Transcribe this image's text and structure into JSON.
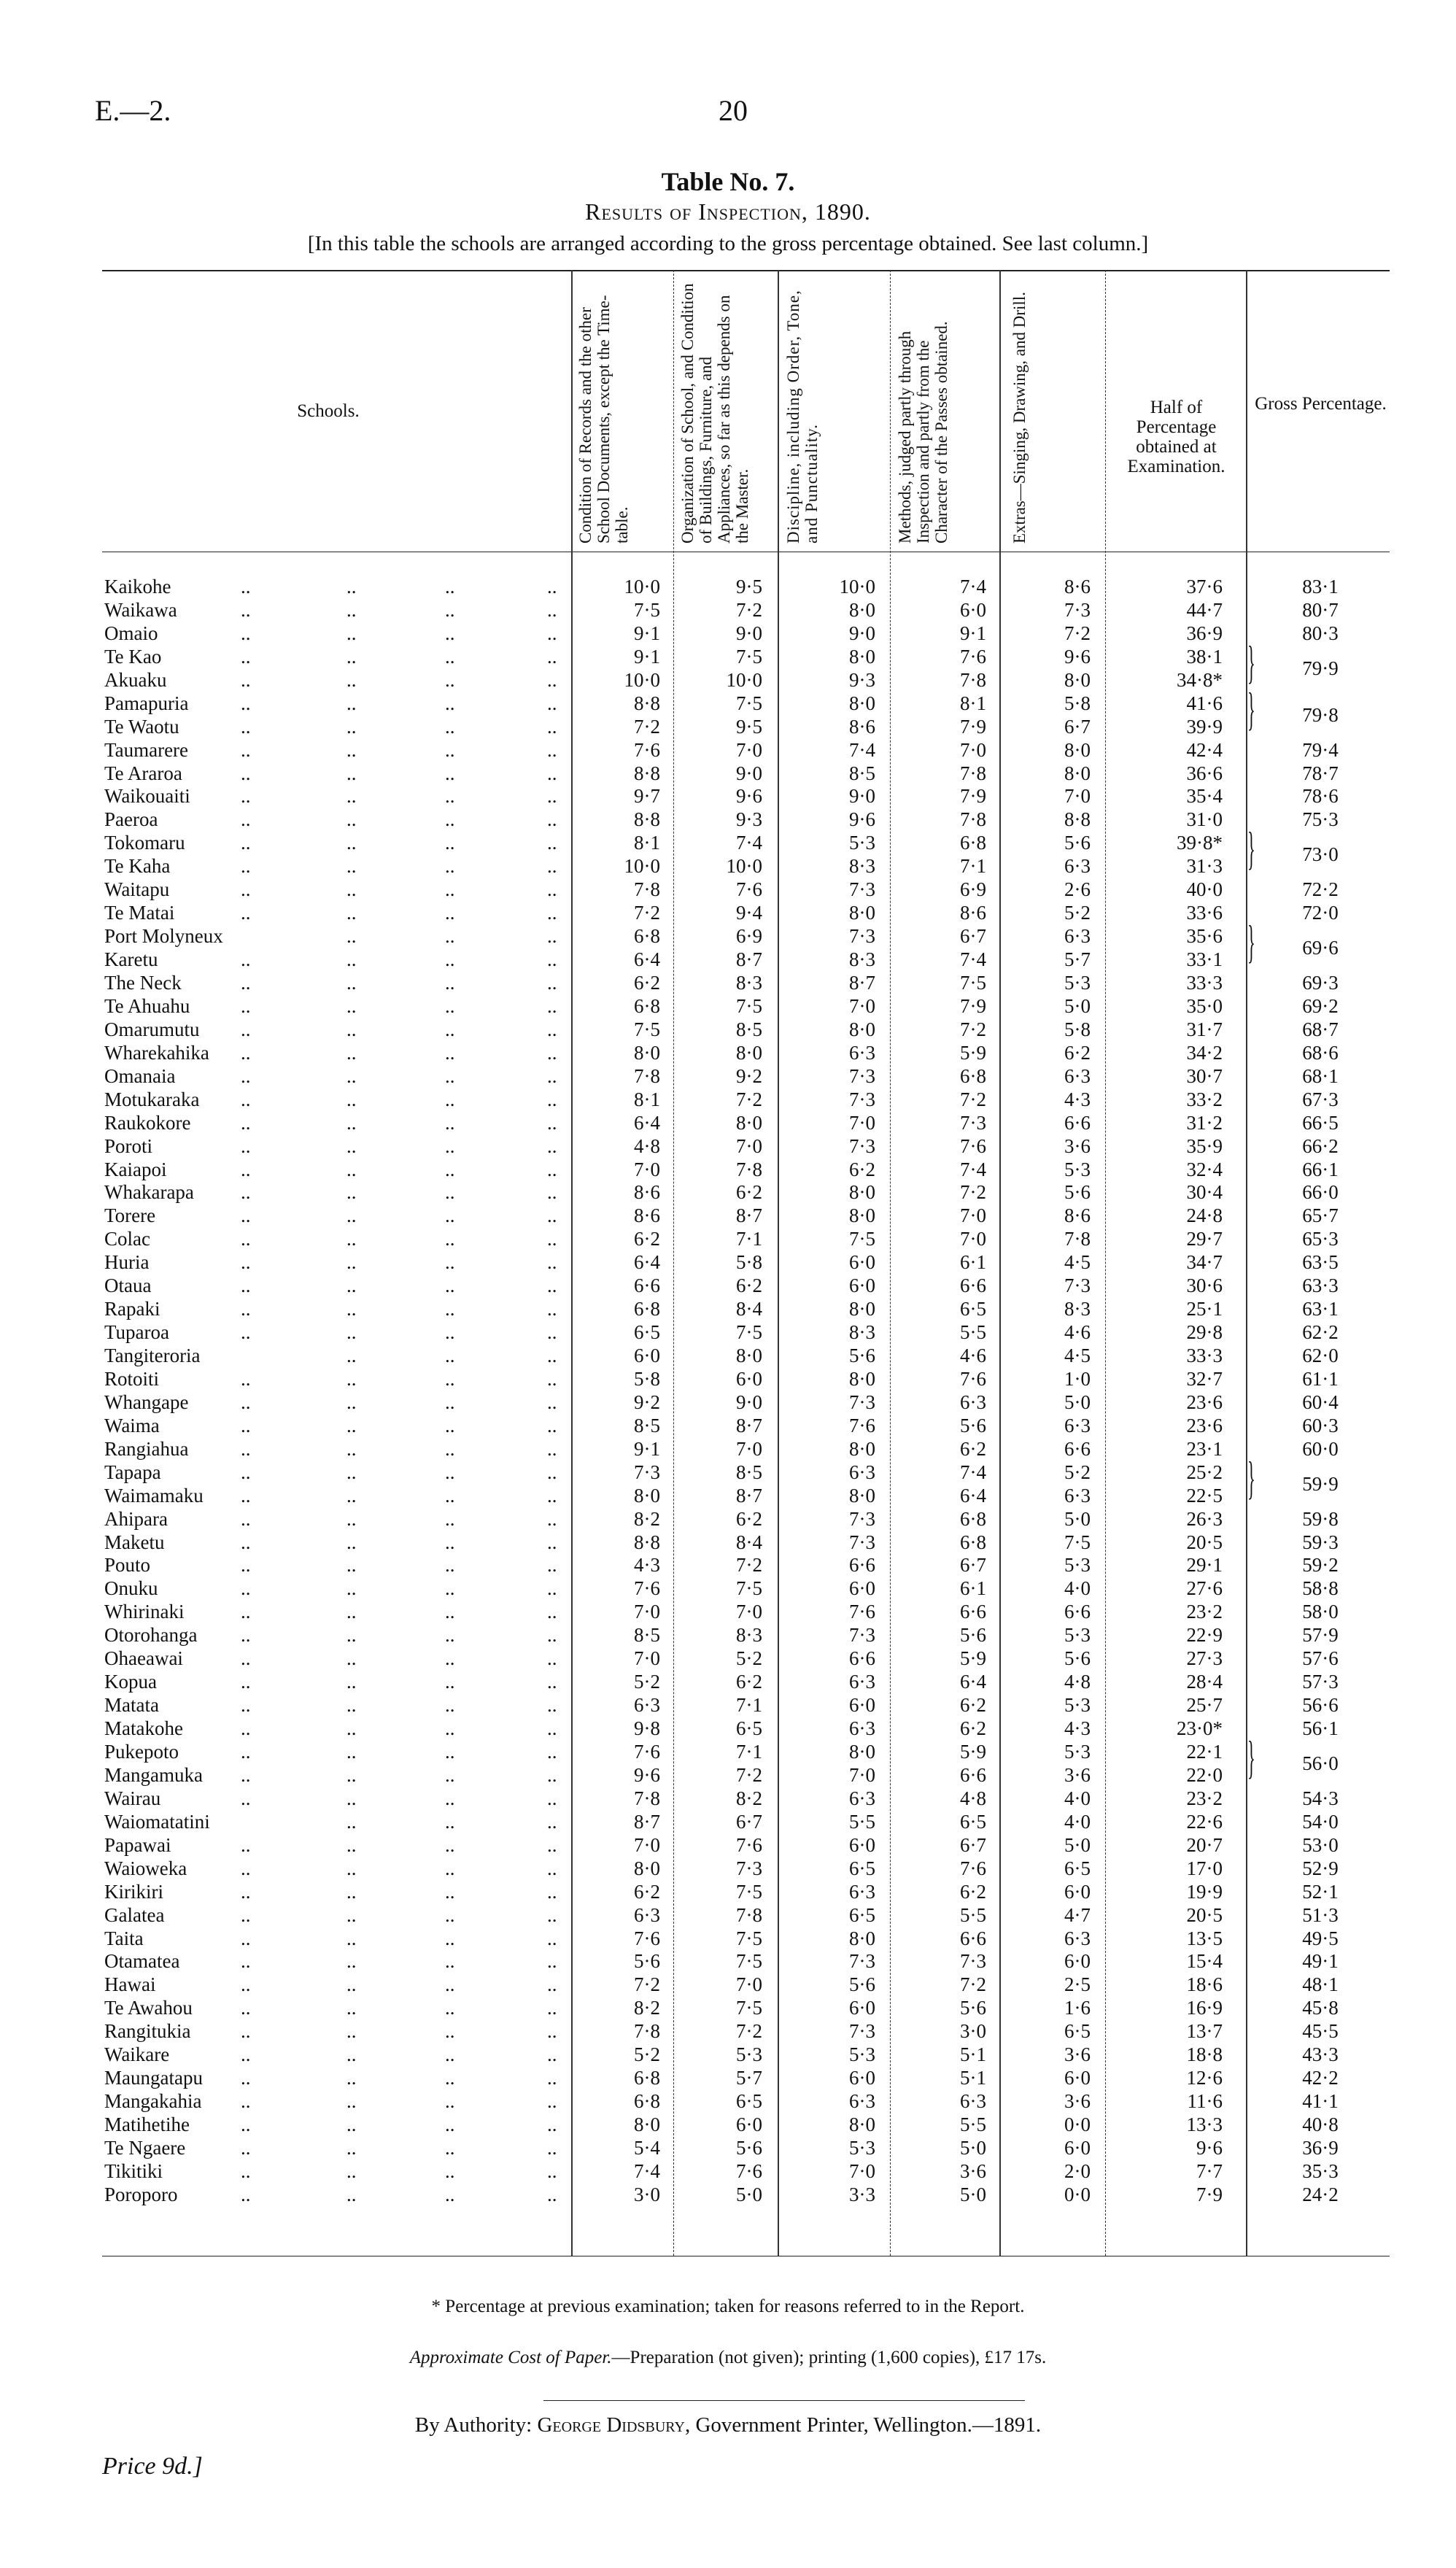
{
  "header": {
    "page_ref": "E.—2.",
    "page_number": "20"
  },
  "title": "Table No. 7.",
  "subtitle": "Results of Inspection, 1890.",
  "note": "[In this table the schools are arranged according to the gross percentage obtained.  See last column.]",
  "columns": {
    "schools": "Schools.",
    "records": "Condition of Records and the other School Documents, except the Time-table.",
    "organization": "Organization of School, and Condition of Buildings, Furniture, and Appliances, so far as this depends on the Master.",
    "discipline": "Discipline, including Order, Tone, and Punctuality.",
    "methods": "Methods, judged partly through Inspection and partly from the Character of the Passes obtained.",
    "extras": "Extras—Singing, Drawing, and Drill.",
    "half": "Half of Percentage obtained at Examination.",
    "gross": "Gross Percentage."
  },
  "rows": [
    {
      "name": "Kaikohe",
      "v": [
        "10·0",
        "9·5",
        "10·0",
        "7·4",
        "8·6"
      ],
      "half": "37·6",
      "gross": "83·1"
    },
    {
      "name": "Waikawa",
      "v": [
        "7·5",
        "7·2",
        "8·0",
        "6·0",
        "7·3"
      ],
      "half": "44·7",
      "gross": "80·7"
    },
    {
      "name": "Omaio",
      "v": [
        "9·1",
        "9·0",
        "9·0",
        "9·1",
        "7·2"
      ],
      "half": "36·9",
      "gross": "80·3"
    },
    {
      "name": "Te Kao",
      "v": [
        "9·1",
        "7·5",
        "8·0",
        "7·6",
        "9·6"
      ],
      "half": "38·1",
      "gross": "79·9",
      "span": 2
    },
    {
      "name": "Akuaku",
      "v": [
        "10·0",
        "10·0",
        "9·3",
        "7·8",
        "8·0"
      ],
      "half": "34·8*",
      "gross": null
    },
    {
      "name": "Pamapuria",
      "v": [
        "8·8",
        "7·5",
        "8·0",
        "8·1",
        "5·8"
      ],
      "half": "41·6",
      "gross": "79·8",
      "span": 2
    },
    {
      "name": "Te Waotu",
      "v": [
        "7·2",
        "9·5",
        "8·6",
        "7·9",
        "6·7"
      ],
      "half": "39·9",
      "gross": null
    },
    {
      "name": "Taumarere",
      "v": [
        "7·6",
        "7·0",
        "7·4",
        "7·0",
        "8·0"
      ],
      "half": "42·4",
      "gross": "79·4"
    },
    {
      "name": "Te Araroa",
      "v": [
        "8·8",
        "9·0",
        "8·5",
        "7·8",
        "8·0"
      ],
      "half": "36·6",
      "gross": "78·7"
    },
    {
      "name": "Waikouaiti",
      "v": [
        "9·7",
        "9·6",
        "9·0",
        "7·9",
        "7·0"
      ],
      "half": "35·4",
      "gross": "78·6"
    },
    {
      "name": "Paeroa",
      "v": [
        "8·8",
        "9·3",
        "9·6",
        "7·8",
        "8·8"
      ],
      "half": "31·0",
      "gross": "75·3"
    },
    {
      "name": "Tokomaru",
      "v": [
        "8·1",
        "7·4",
        "5·3",
        "6·8",
        "5·6"
      ],
      "half": "39·8*",
      "gross": "73·0",
      "span": 2
    },
    {
      "name": "Te Kaha",
      "v": [
        "10·0",
        "10·0",
        "8·3",
        "7·1",
        "6·3"
      ],
      "half": "31·3",
      "gross": null
    },
    {
      "name": "Waitapu",
      "v": [
        "7·8",
        "7·6",
        "7·3",
        "6·9",
        "2·6"
      ],
      "half": "40·0",
      "gross": "72·2"
    },
    {
      "name": "Te Matai",
      "v": [
        "7·2",
        "9·4",
        "8·0",
        "8·6",
        "5·2"
      ],
      "half": "33·6",
      "gross": "72·0"
    },
    {
      "name": "Port Molyneux",
      "v": [
        "6·8",
        "6·9",
        "7·3",
        "6·7",
        "6·3"
      ],
      "half": "35·6",
      "gross": "69·6",
      "span": 2
    },
    {
      "name": "Karetu",
      "v": [
        "6·4",
        "8·7",
        "8·3",
        "7·4",
        "5·7"
      ],
      "half": "33·1",
      "gross": null
    },
    {
      "name": "The Neck",
      "v": [
        "6·2",
        "8·3",
        "8·7",
        "7·5",
        "5·3"
      ],
      "half": "33·3",
      "gross": "69·3"
    },
    {
      "name": "Te Ahuahu",
      "v": [
        "6·8",
        "7·5",
        "7·0",
        "7·9",
        "5·0"
      ],
      "half": "35·0",
      "gross": "69·2"
    },
    {
      "name": "Omarumutu",
      "v": [
        "7·5",
        "8·5",
        "8·0",
        "7·2",
        "5·8"
      ],
      "half": "31·7",
      "gross": "68·7"
    },
    {
      "name": "Wharekahika",
      "v": [
        "8·0",
        "8·0",
        "6·3",
        "5·9",
        "6·2"
      ],
      "half": "34·2",
      "gross": "68·6"
    },
    {
      "name": "Omanaia",
      "v": [
        "7·8",
        "9·2",
        "7·3",
        "6·8",
        "6·3"
      ],
      "half": "30·7",
      "gross": "68·1"
    },
    {
      "name": "Motukaraka",
      "v": [
        "8·1",
        "7·2",
        "7·3",
        "7·2",
        "4·3"
      ],
      "half": "33·2",
      "gross": "67·3"
    },
    {
      "name": "Raukokore",
      "v": [
        "6·4",
        "8·0",
        "7·0",
        "7·3",
        "6·6"
      ],
      "half": "31·2",
      "gross": "66·5"
    },
    {
      "name": "Poroti",
      "v": [
        "4·8",
        "7·0",
        "7·3",
        "7·6",
        "3·6"
      ],
      "half": "35·9",
      "gross": "66·2"
    },
    {
      "name": "Kaiapoi",
      "v": [
        "7·0",
        "7·8",
        "6·2",
        "7·4",
        "5·3"
      ],
      "half": "32·4",
      "gross": "66·1"
    },
    {
      "name": "Whakarapa",
      "v": [
        "8·6",
        "6·2",
        "8·0",
        "7·2",
        "5·6"
      ],
      "half": "30·4",
      "gross": "66·0"
    },
    {
      "name": "Torere",
      "v": [
        "8·6",
        "8·7",
        "8·0",
        "7·0",
        "8·6"
      ],
      "half": "24·8",
      "gross": "65·7"
    },
    {
      "name": "Colac",
      "v": [
        "6·2",
        "7·1",
        "7·5",
        "7·0",
        "7·8"
      ],
      "half": "29·7",
      "gross": "65·3"
    },
    {
      "name": "Huria",
      "v": [
        "6·4",
        "5·8",
        "6·0",
        "6·1",
        "4·5"
      ],
      "half": "34·7",
      "gross": "63·5"
    },
    {
      "name": "Otaua",
      "v": [
        "6·6",
        "6·2",
        "6·0",
        "6·6",
        "7·3"
      ],
      "half": "30·6",
      "gross": "63·3"
    },
    {
      "name": "Rapaki",
      "v": [
        "6·8",
        "8·4",
        "8·0",
        "6·5",
        "8·3"
      ],
      "half": "25·1",
      "gross": "63·1"
    },
    {
      "name": "Tuparoa",
      "v": [
        "6·5",
        "7·5",
        "8·3",
        "5·5",
        "4·6"
      ],
      "half": "29·8",
      "gross": "62·2"
    },
    {
      "name": "Tangiteroria",
      "v": [
        "6·0",
        "8·0",
        "5·6",
        "4·6",
        "4·5"
      ],
      "half": "33·3",
      "gross": "62·0"
    },
    {
      "name": "Rotoiti",
      "v": [
        "5·8",
        "6·0",
        "8·0",
        "7·6",
        "1·0"
      ],
      "half": "32·7",
      "gross": "61·1"
    },
    {
      "name": "Whangape",
      "v": [
        "9·2",
        "9·0",
        "7·3",
        "6·3",
        "5·0"
      ],
      "half": "23·6",
      "gross": "60·4"
    },
    {
      "name": "Waima",
      "v": [
        "8·5",
        "8·7",
        "7·6",
        "5·6",
        "6·3"
      ],
      "half": "23·6",
      "gross": "60·3"
    },
    {
      "name": "Rangiahua",
      "v": [
        "9·1",
        "7·0",
        "8·0",
        "6·2",
        "6·6"
      ],
      "half": "23·1",
      "gross": "60·0"
    },
    {
      "name": "Tapapa",
      "v": [
        "7·3",
        "8·5",
        "6·3",
        "7·4",
        "5·2"
      ],
      "half": "25·2",
      "gross": "59·9",
      "span": 2
    },
    {
      "name": "Waimamaku",
      "v": [
        "8·0",
        "8·7",
        "8·0",
        "6·4",
        "6·3"
      ],
      "half": "22·5",
      "gross": null
    },
    {
      "name": "Ahipara",
      "v": [
        "8·2",
        "6·2",
        "7·3",
        "6·8",
        "5·0"
      ],
      "half": "26·3",
      "gross": "59·8"
    },
    {
      "name": "Maketu",
      "v": [
        "8·8",
        "8·4",
        "7·3",
        "6·8",
        "7·5"
      ],
      "half": "20·5",
      "gross": "59·3"
    },
    {
      "name": "Pouto",
      "v": [
        "4·3",
        "7·2",
        "6·6",
        "6·7",
        "5·3"
      ],
      "half": "29·1",
      "gross": "59·2"
    },
    {
      "name": "Onuku",
      "v": [
        "7·6",
        "7·5",
        "6·0",
        "6·1",
        "4·0"
      ],
      "half": "27·6",
      "gross": "58·8"
    },
    {
      "name": "Whirinaki",
      "v": [
        "7·0",
        "7·0",
        "7·6",
        "6·6",
        "6·6"
      ],
      "half": "23·2",
      "gross": "58·0"
    },
    {
      "name": "Otorohanga",
      "v": [
        "8·5",
        "8·3",
        "7·3",
        "5·6",
        "5·3"
      ],
      "half": "22·9",
      "gross": "57·9"
    },
    {
      "name": "Ohaeawai",
      "v": [
        "7·0",
        "5·2",
        "6·6",
        "5·9",
        "5·6"
      ],
      "half": "27·3",
      "gross": "57·6"
    },
    {
      "name": "Kopua",
      "v": [
        "5·2",
        "6·2",
        "6·3",
        "6·4",
        "4·8"
      ],
      "half": "28·4",
      "gross": "57·3"
    },
    {
      "name": "Matata",
      "v": [
        "6·3",
        "7·1",
        "6·0",
        "6·2",
        "5·3"
      ],
      "half": "25·7",
      "gross": "56·6"
    },
    {
      "name": "Matakohe",
      "v": [
        "9·8",
        "6·5",
        "6·3",
        "6·2",
        "4·3"
      ],
      "half": "23·0*",
      "gross": "56·1"
    },
    {
      "name": "Pukepoto",
      "v": [
        "7·6",
        "7·1",
        "8·0",
        "5·9",
        "5·3"
      ],
      "half": "22·1",
      "gross": "56·0",
      "span": 2
    },
    {
      "name": "Mangamuka",
      "v": [
        "9·6",
        "7·2",
        "7·0",
        "6·6",
        "3·6"
      ],
      "half": "22·0",
      "gross": null
    },
    {
      "name": "Wairau",
      "v": [
        "7·8",
        "8·2",
        "6·3",
        "4·8",
        "4·0"
      ],
      "half": "23·2",
      "gross": "54·3"
    },
    {
      "name": "Waiomatatini",
      "v": [
        "8·7",
        "6·7",
        "5·5",
        "6·5",
        "4·0"
      ],
      "half": "22·6",
      "gross": "54·0"
    },
    {
      "name": "Papawai",
      "v": [
        "7·0",
        "7·6",
        "6·0",
        "6·7",
        "5·0"
      ],
      "half": "20·7",
      "gross": "53·0"
    },
    {
      "name": "Waioweka",
      "v": [
        "8·0",
        "7·3",
        "6·5",
        "7·6",
        "6·5"
      ],
      "half": "17·0",
      "gross": "52·9"
    },
    {
      "name": "Kirikiri",
      "v": [
        "6·2",
        "7·5",
        "6·3",
        "6·2",
        "6·0"
      ],
      "half": "19·9",
      "gross": "52·1"
    },
    {
      "name": "Galatea",
      "v": [
        "6·3",
        "7·8",
        "6·5",
        "5·5",
        "4·7"
      ],
      "half": "20·5",
      "gross": "51·3"
    },
    {
      "name": "Taita",
      "v": [
        "7·6",
        "7·5",
        "8·0",
        "6·6",
        "6·3"
      ],
      "half": "13·5",
      "gross": "49·5"
    },
    {
      "name": "Otamatea",
      "v": [
        "5·6",
        "7·5",
        "7·3",
        "7·3",
        "6·0"
      ],
      "half": "15·4",
      "gross": "49·1"
    },
    {
      "name": "Hawai",
      "v": [
        "7·2",
        "7·0",
        "5·6",
        "7·2",
        "2·5"
      ],
      "half": "18·6",
      "gross": "48·1"
    },
    {
      "name": "Te Awahou",
      "v": [
        "8·2",
        "7·5",
        "6·0",
        "5·6",
        "1·6"
      ],
      "half": "16·9",
      "gross": "45·8"
    },
    {
      "name": "Rangitukia",
      "v": [
        "7·8",
        "7·2",
        "7·3",
        "3·0",
        "6·5"
      ],
      "half": "13·7",
      "gross": "45·5"
    },
    {
      "name": "Waikare",
      "v": [
        "5·2",
        "5·3",
        "5·3",
        "5·1",
        "3·6"
      ],
      "half": "18·8",
      "gross": "43·3"
    },
    {
      "name": "Maungatapu",
      "v": [
        "6·8",
        "5·7",
        "6·0",
        "5·1",
        "6·0"
      ],
      "half": "12·6",
      "gross": "42·2"
    },
    {
      "name": "Mangakahia",
      "v": [
        "6·8",
        "6·5",
        "6·3",
        "6·3",
        "3·6"
      ],
      "half": "11·6",
      "gross": "41·1"
    },
    {
      "name": "Matihetihe",
      "v": [
        "8·0",
        "6·0",
        "8·0",
        "5·5",
        "0·0"
      ],
      "half": "13·3",
      "gross": "40·8"
    },
    {
      "name": "Te Ngaere",
      "v": [
        "5·4",
        "5·6",
        "5·3",
        "5·0",
        "6·0"
      ],
      "half": "9·6",
      "gross": "36·9"
    },
    {
      "name": "Tikitiki",
      "v": [
        "7·4",
        "7·6",
        "7·0",
        "3·6",
        "2·0"
      ],
      "half": "7·7",
      "gross": "35·3"
    },
    {
      "name": "Poroporo",
      "v": [
        "3·0",
        "5·0",
        "3·3",
        "5·0",
        "0·0"
      ],
      "half": "7·9",
      "gross": "24·2"
    }
  ],
  "dot_leader": "..",
  "footnote": "* Percentage at previous examination; taken for reasons referred to in the Report.",
  "cost": {
    "label": "Approximate Cost of Paper.",
    "text": "—Preparation (not given); printing (1,600 copies), £17 17s."
  },
  "authority": {
    "prefix": "By Authority: ",
    "printer": "George Didsbury",
    "suffix": ", Government Printer, Wellington.—1891."
  },
  "price": "Price 9d.]"
}
